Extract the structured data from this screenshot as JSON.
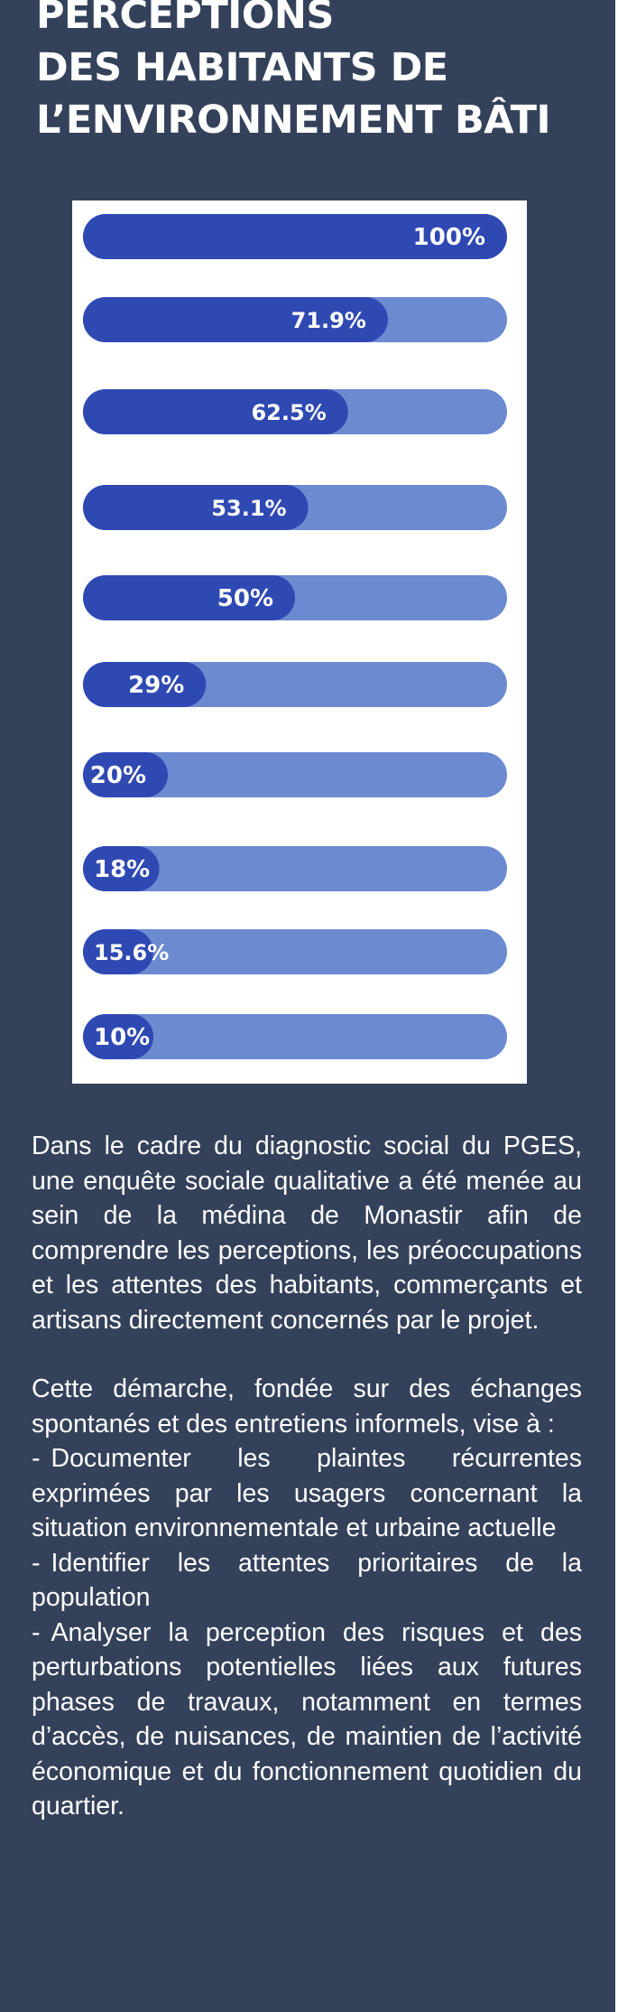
{
  "header": {
    "title_lines": [
      "PERCEPTIONS",
      "DES HABITANTS DE",
      "L’ENVIRONNEMENT BÂTI"
    ]
  },
  "colors": {
    "background": "#34415a",
    "bar_fill": "#2f49b3",
    "bar_track": "#6b8ad0",
    "text": "#ffffff"
  },
  "chart_data": {
    "type": "bar",
    "orientation": "horizontal",
    "title": "",
    "xlabel": "",
    "ylabel": "",
    "xlim": [
      0,
      100
    ],
    "grid": false,
    "values": [
      100,
      71.9,
      62.5,
      53.1,
      50,
      29,
      20,
      18,
      15.6,
      10
    ],
    "labels": [
      "100%",
      "71.9%",
      "62.5%",
      "53.1%",
      "50%",
      "29%",
      "20%",
      "18%",
      "15.6%",
      "10%"
    ]
  },
  "body": {
    "paragraph_1": "Dans le cadre du diagnostic social du PGES, une enquête sociale qualitative a été menée au sein de la médina de Monastir afin de comprendre les perceptions, les préoccupations et les attentes des habitants, commerçants et artisans directement concernés par le projet.",
    "paragraph_2": "Cette démarche, fondée sur des échanges spontanés et des entretiens informels, vise à :",
    "bullet_marker": "-",
    "bullets": [
      "Documenter les plaintes récurrentes exprimées par les usagers concernant la situation environnementale et urbaine actuelle",
      "Identifier les attentes prioritaires de la population",
      "Analyser la perception des risques et des perturbations potentielles liées aux futures phases de travaux, notamment en termes d’accès, de nuisances, de maintien de l’activité économique et du fonctionnement quotidien du quartier."
    ]
  }
}
